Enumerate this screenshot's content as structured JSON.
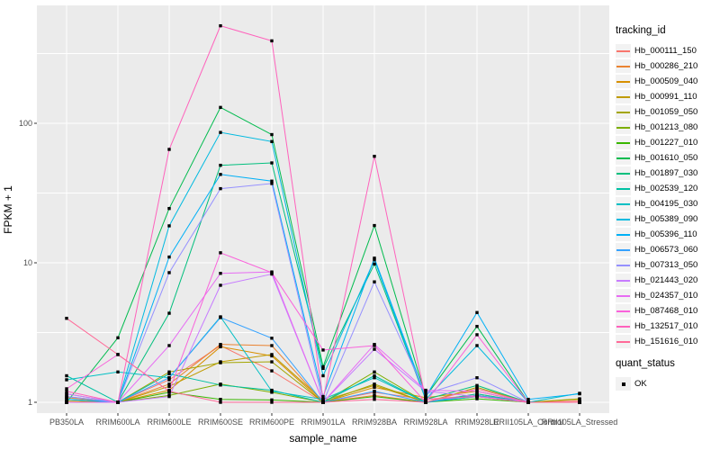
{
  "chart_data": {
    "type": "line",
    "xlabel": "sample_name",
    "ylabel": "FPKM + 1",
    "y_scale": "log10",
    "y_ticks": [
      1,
      10,
      100
    ],
    "y_minor_ticks": [
      3.1623,
      31.623,
      316.23
    ],
    "ylim": [
      0.85,
      700
    ],
    "grid": "on",
    "panel_bg": "#EBEBEB",
    "grid_color": "#FFFFFF",
    "tick_text_color": "#4D4D4D",
    "point_shape": "filled-square-black",
    "legend_position": "right",
    "categories": [
      "PB350LA",
      "RRIM600LA",
      "RRIM600LE",
      "RRIM600SE",
      "RRIM600PE",
      "RRIM901LA",
      "RRIM928BA",
      "RRIM928LA",
      "RRIM928LE",
      "RRII105LA_Control",
      "RRII105LA_Stressed"
    ],
    "legend": {
      "tracking_title": "tracking_id",
      "quant_title": "quant_status",
      "quant_items": [
        {
          "label": "OK"
        }
      ]
    },
    "series": [
      {
        "name": "Hb_000111_150",
        "color": "#F8766D",
        "values": [
          1.15,
          1.0,
          1.45,
          2.55,
          1.68,
          1.0,
          1.18,
          1.05,
          1.12,
          1.0,
          1.02
        ]
      },
      {
        "name": "Hb_000286_210",
        "color": "#EA8331",
        "values": [
          1.08,
          1.0,
          1.35,
          2.6,
          2.55,
          1.0,
          1.12,
          1.0,
          1.15,
          1.0,
          1.0
        ]
      },
      {
        "name": "Hb_000509_040",
        "color": "#D89000",
        "values": [
          1.0,
          1.0,
          1.22,
          2.5,
          2.15,
          1.0,
          1.28,
          1.08,
          1.2,
          1.0,
          1.0
        ]
      },
      {
        "name": "Hb_000991_110",
        "color": "#C09B00",
        "values": [
          1.02,
          1.0,
          1.3,
          1.95,
          2.2,
          1.03,
          1.32,
          1.0,
          1.12,
          1.0,
          1.05
        ]
      },
      {
        "name": "Hb_001059_050",
        "color": "#A3A500",
        "values": [
          1.0,
          1.0,
          1.65,
          1.92,
          1.95,
          1.0,
          1.35,
          1.0,
          1.28,
          1.0,
          1.06
        ]
      },
      {
        "name": "Hb_001213_080",
        "color": "#7CAE00",
        "values": [
          1.0,
          1.0,
          1.12,
          1.35,
          1.18,
          1.0,
          1.65,
          1.0,
          1.1,
          1.0,
          1.0
        ]
      },
      {
        "name": "Hb_001227_010",
        "color": "#39B600",
        "values": [
          1.0,
          1.0,
          1.18,
          1.05,
          1.04,
          1.0,
          1.1,
          1.0,
          1.06,
          1.0,
          1.0
        ]
      },
      {
        "name": "Hb_001610_050",
        "color": "#00BB4E",
        "values": [
          1.0,
          2.9,
          24.5,
          130,
          83,
          1.8,
          18.5,
          1.1,
          3.5,
          1.0,
          1.0
        ]
      },
      {
        "name": "Hb_001897_030",
        "color": "#00BF7D",
        "values": [
          1.05,
          1.0,
          4.35,
          50,
          52,
          1.75,
          9.8,
          1.05,
          1.32,
          1.0,
          1.0
        ]
      },
      {
        "name": "Hb_002539_120",
        "color": "#00C1A3",
        "values": [
          1.55,
          1.0,
          1.6,
          1.33,
          1.22,
          1.0,
          1.55,
          1.0,
          1.15,
          1.0,
          1.0
        ]
      },
      {
        "name": "Hb_004195_030",
        "color": "#00BFC4",
        "values": [
          1.45,
          1.65,
          1.5,
          4.1,
          1.2,
          1.05,
          1.5,
          1.0,
          1.1,
          1.0,
          1.16
        ]
      },
      {
        "name": "Hb_005389_090",
        "color": "#00BAE0",
        "values": [
          1.1,
          1.0,
          18.4,
          86,
          74,
          1.55,
          10.5,
          1.05,
          2.55,
          1.0,
          1.0
        ]
      },
      {
        "name": "Hb_005396_110",
        "color": "#00B0F6",
        "values": [
          1.05,
          1.0,
          11.0,
          43,
          38.5,
          1.1,
          10.8,
          1.1,
          4.4,
          1.05,
          1.15
        ]
      },
      {
        "name": "Hb_006573_060",
        "color": "#35A2FF",
        "values": [
          1.0,
          1.0,
          1.5,
          4.05,
          2.88,
          1.0,
          1.2,
          1.0,
          1.12,
          1.0,
          1.0
        ]
      },
      {
        "name": "Hb_007313_050",
        "color": "#9590FF",
        "values": [
          1.1,
          1.0,
          8.5,
          34,
          37,
          1.0,
          7.3,
          1.15,
          1.5,
          1.0,
          1.0
        ]
      },
      {
        "name": "Hb_021443_020",
        "color": "#C77CFF",
        "values": [
          1.15,
          1.0,
          1.1,
          6.9,
          8.3,
          1.0,
          2.4,
          1.2,
          1.1,
          1.0,
          1.0
        ]
      },
      {
        "name": "Hb_024357_010",
        "color": "#E76BF3",
        "values": [
          1.0,
          1.0,
          2.55,
          8.4,
          8.6,
          1.0,
          2.6,
          1.22,
          1.2,
          1.0,
          1.0
        ]
      },
      {
        "name": "Hb_087468_010",
        "color": "#FA62DB",
        "values": [
          1.25,
          2.2,
          1.2,
          11.8,
          8.5,
          2.37,
          2.55,
          1.0,
          3.05,
          1.0,
          1.0
        ]
      },
      {
        "name": "Hb_132517_010",
        "color": "#FF62BC",
        "values": [
          1.2,
          1.0,
          65,
          500,
          390,
          1.05,
          58,
          1.05,
          1.1,
          1.0,
          1.0
        ]
      },
      {
        "name": "Hb_151616_010",
        "color": "#FF6A98",
        "values": [
          4.0,
          2.2,
          1.2,
          1.0,
          1.0,
          1.0,
          1.05,
          1.0,
          1.25,
          1.0,
          1.0
        ]
      }
    ]
  }
}
